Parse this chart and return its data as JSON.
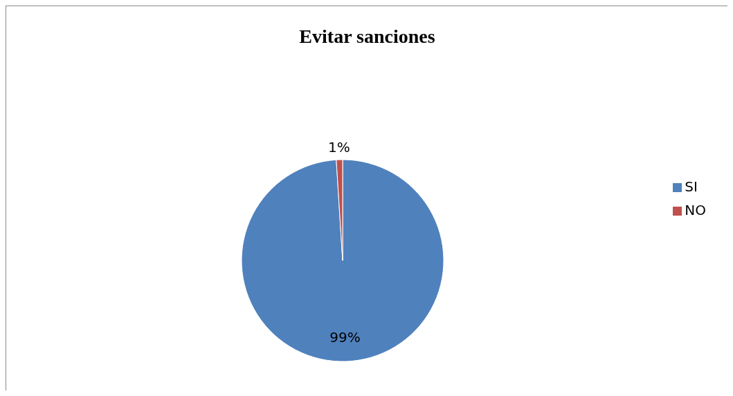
{
  "chart_data": {
    "type": "pie",
    "title": "Evitar sanciones",
    "categories": [
      "SI",
      "NO"
    ],
    "values": [
      99,
      1
    ],
    "colors": [
      "#4f81bd",
      "#c0504d"
    ],
    "value_labels": [
      "99%",
      "1%"
    ],
    "legend": "right"
  }
}
